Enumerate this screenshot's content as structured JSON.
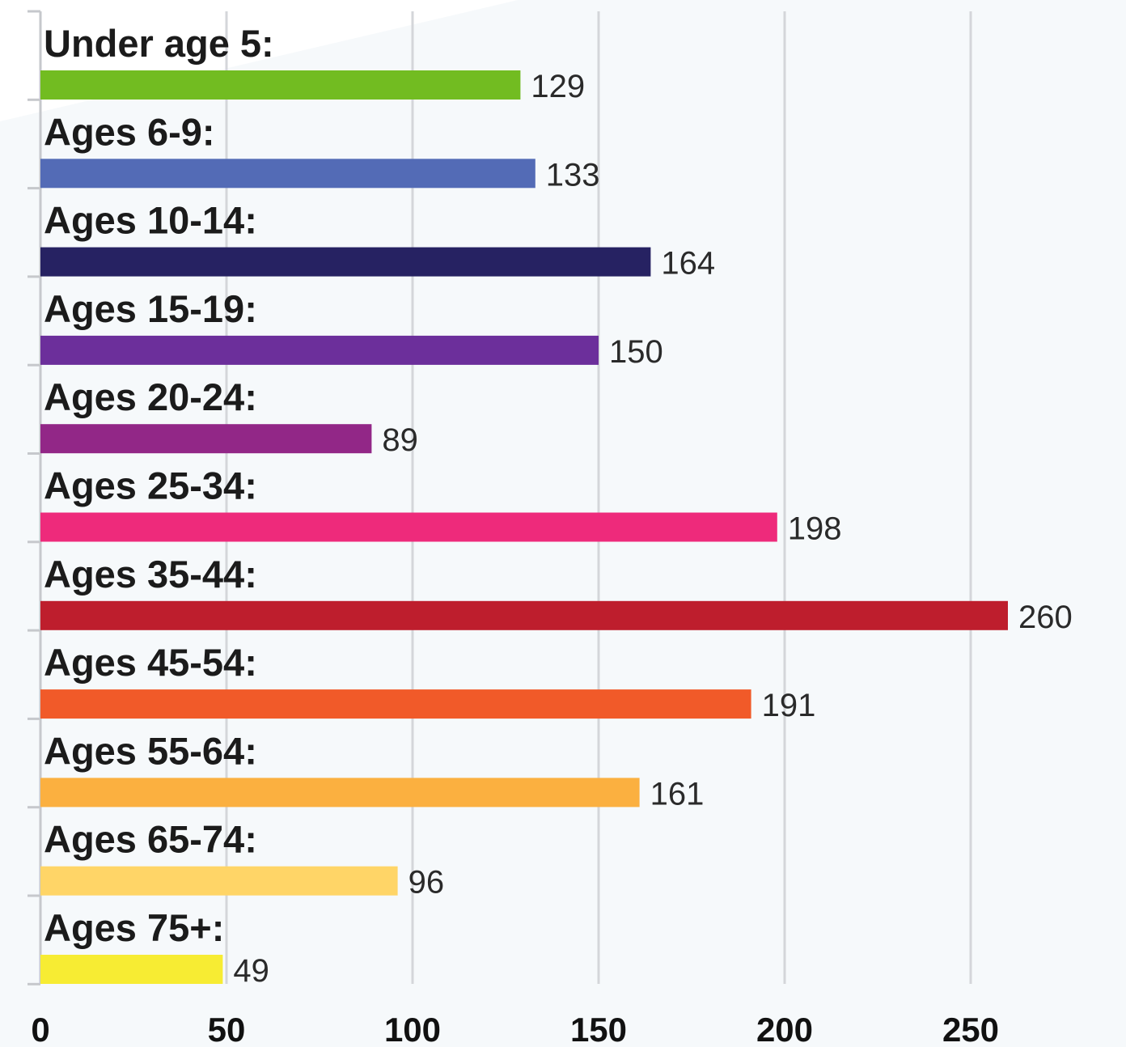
{
  "chart_data": {
    "type": "bar",
    "orientation": "horizontal",
    "categories": [
      "Under age 5:",
      "Ages 6-9:",
      "Ages 10-14:",
      "Ages 15-19:",
      "Ages 20-24:",
      "Ages 25-34:",
      "Ages 35-44:",
      "Ages 45-54:",
      "Ages 55-64:",
      "Ages 65-74:",
      "Ages 75+:"
    ],
    "values": [
      129,
      133,
      164,
      150,
      89,
      198,
      260,
      191,
      161,
      96,
      49
    ],
    "value_labels": [
      "129",
      "133",
      "164",
      "150",
      "89",
      "198",
      "260",
      "191",
      "161",
      "96",
      "49"
    ],
    "colors": [
      "#72bc21",
      "#536bb6",
      "#262262",
      "#6c2f9b",
      "#922787",
      "#ee2a7b",
      "#be1e2d",
      "#f15a29",
      "#fbb040",
      "#ffd567",
      "#f7ec33"
    ],
    "xlim": [
      0,
      285
    ],
    "x_ticks": [
      0,
      50,
      100,
      150,
      200,
      250
    ],
    "x_tick_labels": [
      "0",
      "50",
      "100",
      "150",
      "200",
      "250"
    ],
    "gridlines": true,
    "legend": false,
    "title": "",
    "xlabel": "",
    "ylabel": ""
  }
}
